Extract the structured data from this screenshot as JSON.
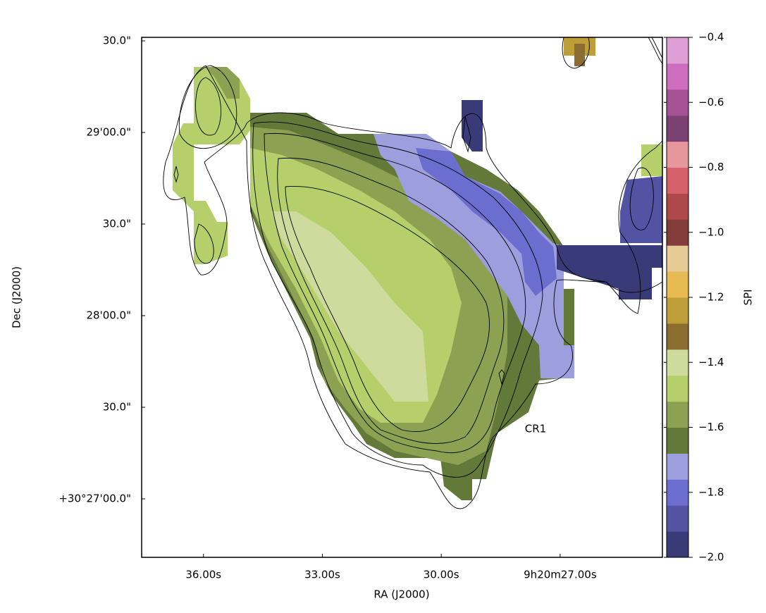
{
  "chart_data": {
    "type": "image",
    "x_label": "RA (J2000)",
    "y_label": "Dec (J2000)",
    "xlim": [
      37.56,
      24.42
    ],
    "xticks": [
      {
        "value": 36,
        "label": "36.00s"
      },
      {
        "value": 33,
        "label": "33.00s"
      },
      {
        "value": 30,
        "label": "30.00s"
      },
      {
        "value": 27,
        "label": "9h20m27.00s"
      }
    ],
    "ylim": [
      -19.15,
      151.15
    ],
    "yticks": [
      {
        "value": 150,
        "label": "30.0\""
      },
      {
        "value": 120,
        "label": "29'00.0\""
      },
      {
        "value": 90,
        "label": "30.0\""
      },
      {
        "value": 60,
        "label": "28'00.0\""
      },
      {
        "value": 30,
        "label": "30.0\""
      },
      {
        "value": 0,
        "label": "+30°27'00.0\""
      }
    ],
    "annotation": "CR1",
    "colorbar": {
      "label": "SPI",
      "lim": [
        -2.0,
        -0.4
      ],
      "ticks": [
        {
          "value": -0.4,
          "label": "−0.4"
        },
        {
          "value": -0.6,
          "label": "−0.6"
        },
        {
          "value": -0.8,
          "label": "−0.8"
        },
        {
          "value": -1.0,
          "label": "−1.0"
        },
        {
          "value": -1.2,
          "label": "−1.2"
        },
        {
          "value": -1.4,
          "label": "−1.4"
        },
        {
          "value": -1.6,
          "label": "−1.6"
        },
        {
          "value": -1.8,
          "label": "−1.8"
        },
        {
          "value": -2.0,
          "label": "−2.0"
        }
      ],
      "colors": [
        "#393b79",
        "#5254a3",
        "#6b6ecf",
        "#9c9ede",
        "#637939",
        "#8ca252",
        "#b5cf6b",
        "#cedb9c",
        "#8c6d31",
        "#bd9e39",
        "#e7ba52",
        "#e7cb94",
        "#843c39",
        "#ad494a",
        "#d6616b",
        "#e7969c",
        "#7b4173",
        "#a55194",
        "#ce6dbd",
        "#de9ed6"
      ]
    }
  }
}
